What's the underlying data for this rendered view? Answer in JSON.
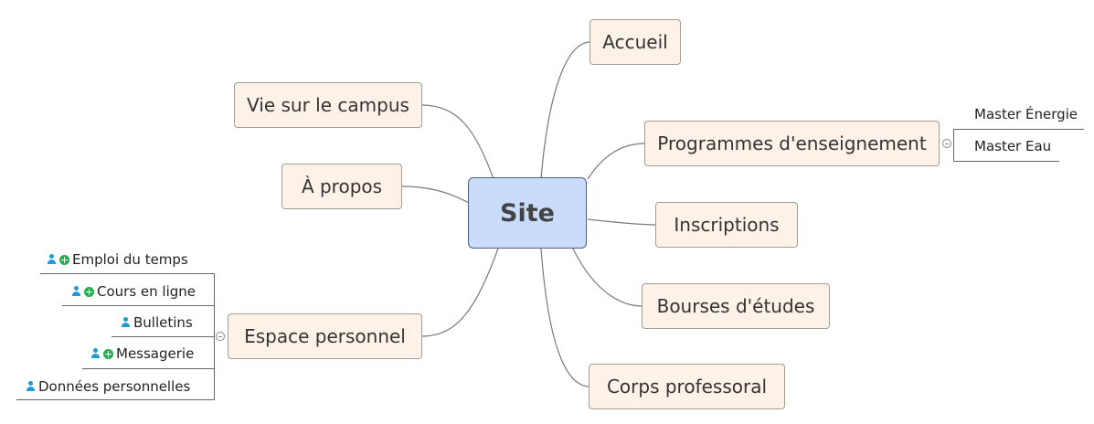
{
  "central": {
    "label": "Site"
  },
  "topics": {
    "accueil": "Accueil",
    "programmes": "Programmes d'enseignement",
    "inscriptions": "Inscriptions",
    "bourses": "Bourses d'études",
    "corps": "Corps professoral",
    "vie": "Vie sur le campus",
    "apropos": "À propos",
    "espace": "Espace personnel"
  },
  "programmes_children": [
    "Master Énergie",
    "Master Eau"
  ],
  "espace_children": [
    {
      "label": "Emploi du temps",
      "icons": [
        "user-icon",
        "add-icon"
      ]
    },
    {
      "label": "Cours en ligne",
      "icons": [
        "user-icon",
        "add-icon"
      ]
    },
    {
      "label": "Bulletins",
      "icons": [
        "user-icon"
      ]
    },
    {
      "label": "Messagerie",
      "icons": [
        "user-icon",
        "add-icon"
      ]
    },
    {
      "label": "Données personnelles",
      "icons": [
        "user-icon"
      ]
    }
  ],
  "colors": {
    "central_fill": "#c9dcfc",
    "topic_fill": "#fdf2e8",
    "user_icon": "#1e9ad6",
    "add_icon": "#22b04a"
  }
}
